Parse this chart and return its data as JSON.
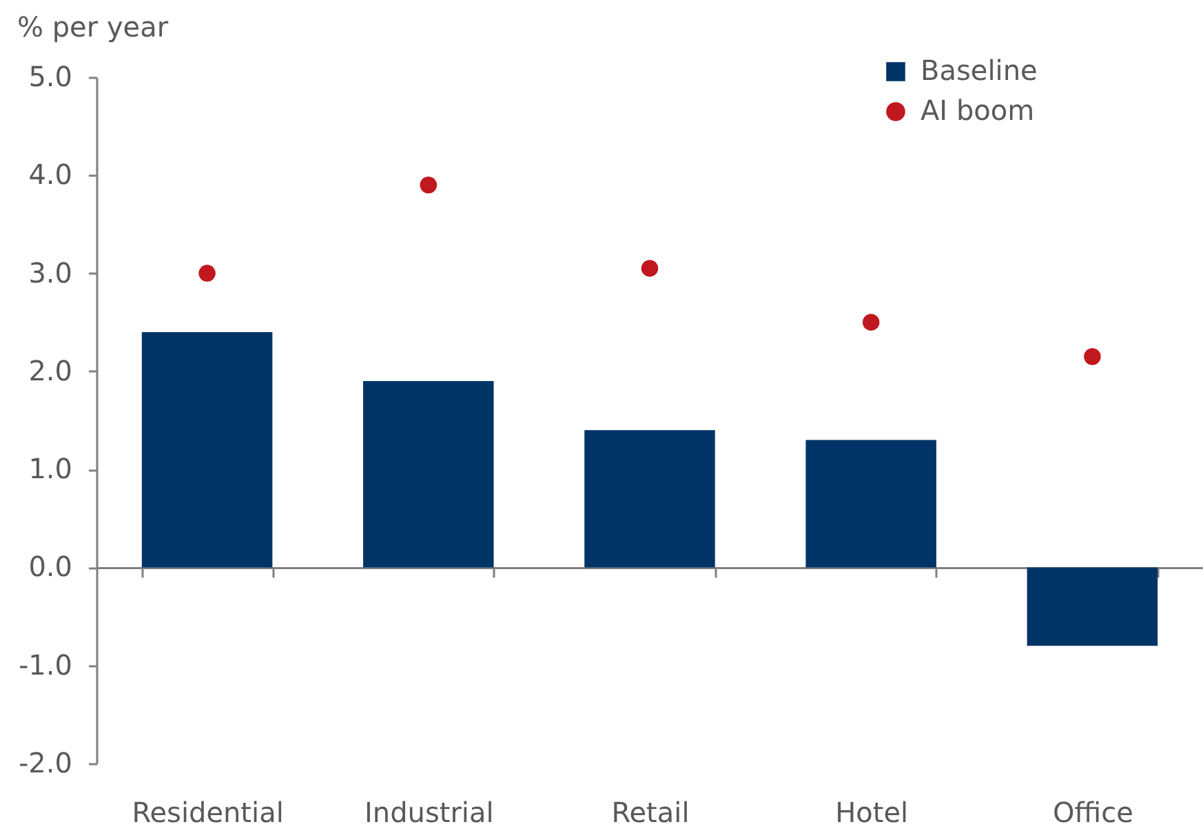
{
  "chart_data": {
    "type": "bar",
    "ylabel": "% per year",
    "categories": [
      "Residential",
      "Industrial",
      "Retail",
      "Hotel",
      "Office"
    ],
    "series": [
      {
        "name": "Baseline",
        "color": "#003466",
        "values": [
          2.4,
          1.9,
          1.4,
          1.3,
          -0.8
        ]
      },
      {
        "name": "AI boom",
        "type": "scatter",
        "color": "#c1171e",
        "values": [
          3.0,
          3.9,
          3.05,
          2.5,
          2.15
        ]
      }
    ],
    "ylim": [
      -2,
      5
    ],
    "yticks": [
      {
        "value": 5,
        "label": "5.0"
      },
      {
        "value": 4,
        "label": "4.0"
      },
      {
        "value": 3,
        "label": "3.0"
      },
      {
        "value": 2,
        "label": "2.0"
      },
      {
        "value": 1,
        "label": "1.0"
      },
      {
        "value": 0,
        "label": "0.0"
      },
      {
        "value": -1,
        "label": "-1.0"
      },
      {
        "value": -2,
        "label": "-2.0"
      }
    ],
    "legend": "top right",
    "marker": "circle"
  }
}
